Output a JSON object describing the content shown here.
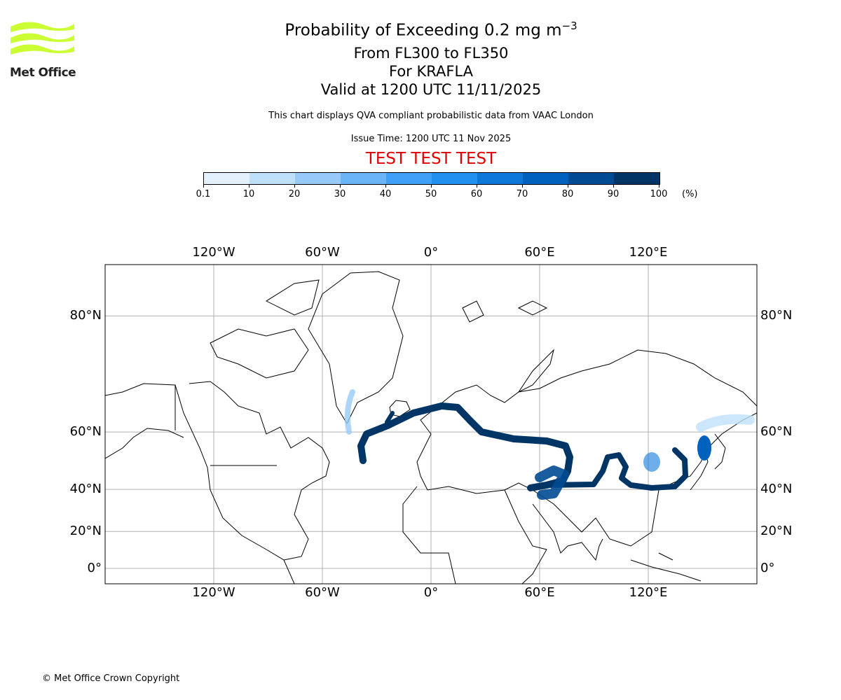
{
  "logo": {
    "text": "Met Office",
    "color": "#ccff33"
  },
  "header": {
    "title": "Probability of Exceeding 0.2 mg m",
    "title_sup": "−3",
    "levels": "From FL300 to FL350",
    "volcano": "For KRAFLA",
    "valid": "Valid at 1200 UTC 11/11/2025",
    "description": "This chart displays QVA compliant probabilistic data from VAAC London",
    "issue": "Issue Time: 1200 UTC 11 Nov 2025",
    "test_banner": "TEST TEST TEST",
    "test_color": "#e00000"
  },
  "colorbar": {
    "ticks": [
      "0.1",
      "10",
      "20",
      "30",
      "40",
      "50",
      "60",
      "70",
      "80",
      "90",
      "100"
    ],
    "unit": "(%)",
    "colors": [
      "#e3f1fd",
      "#bfe0fb",
      "#97caf9",
      "#6cb4f8",
      "#40a0f8",
      "#2190ef",
      "#0e78da",
      "#0062bc",
      "#004b93",
      "#003566"
    ]
  },
  "map": {
    "lon_labels": [
      "120°W",
      "60°W",
      "0°",
      "60°E",
      "120°E"
    ],
    "lon_values": [
      -120,
      -60,
      0,
      60,
      120
    ],
    "lat_labels": [
      "0°",
      "20°N",
      "40°N",
      "60°N",
      "80°N"
    ],
    "lat_values": [
      0,
      20,
      40,
      60,
      80
    ],
    "plume_color": "#003566"
  },
  "footer": {
    "copyright": "© Met Office Crown Copyright"
  }
}
